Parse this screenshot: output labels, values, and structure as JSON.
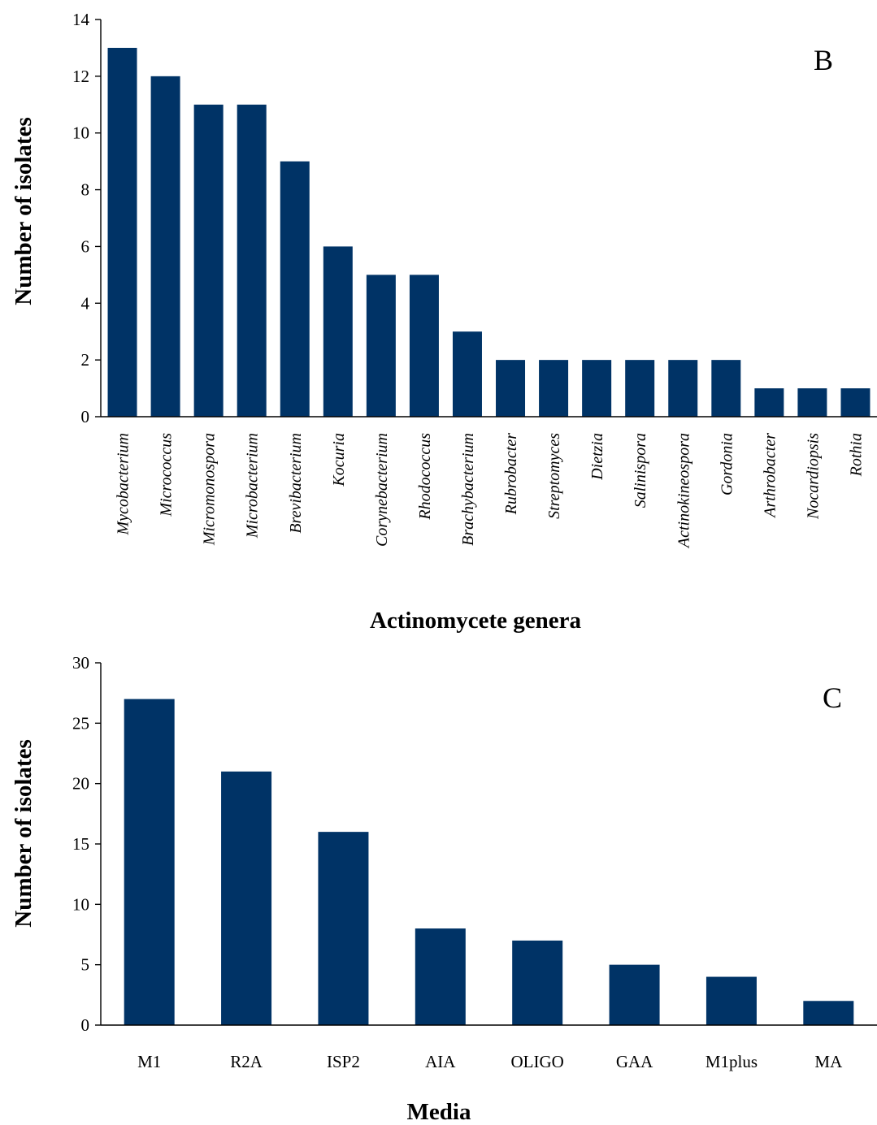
{
  "colors": {
    "bar": "#003366",
    "axis": "#000000",
    "background": "#ffffff"
  },
  "chart_data": [
    {
      "type": "bar",
      "panel_label": "B",
      "categories": [
        "Mycobacterium",
        "Micrococcus",
        "Micromonospora",
        "Microbacterium",
        "Brevibacterium",
        "Kocuria",
        "Corynebacterium",
        "Rhodococcus",
        "Brachybacterium",
        "Rubrobacter",
        "Streptomyces",
        "Dietzia",
        "Salinispora",
        "Actinokineospora",
        "Gordonia",
        "Arthrobacter",
        "Nocardiopsis",
        "Rothia"
      ],
      "values": [
        13,
        12,
        11,
        11,
        9,
        6,
        5,
        5,
        3,
        2,
        2,
        2,
        2,
        2,
        2,
        1,
        1,
        1
      ],
      "yticks": [
        "0",
        "2",
        "4",
        "6",
        "8",
        "10",
        "12",
        "14"
      ],
      "xlabel": "Actinomycete genera",
      "ylabel": "Number of isolates",
      "ylim": [
        0,
        14
      ],
      "italic_categories": true,
      "grid": false,
      "legend": "none"
    },
    {
      "type": "bar",
      "panel_label": "C",
      "categories": [
        "M1",
        "R2A",
        "ISP2",
        "AIA",
        "OLIGO",
        "GAA",
        "M1plus",
        "MA"
      ],
      "values": [
        27,
        21,
        16,
        8,
        7,
        5,
        4,
        2
      ],
      "yticks": [
        "0",
        "5",
        "10",
        "15",
        "20",
        "25",
        "30"
      ],
      "xlabel": "Media",
      "ylabel": "Number of isolates",
      "ylim": [
        0,
        30
      ],
      "italic_categories": false,
      "grid": false,
      "legend": "none"
    }
  ]
}
